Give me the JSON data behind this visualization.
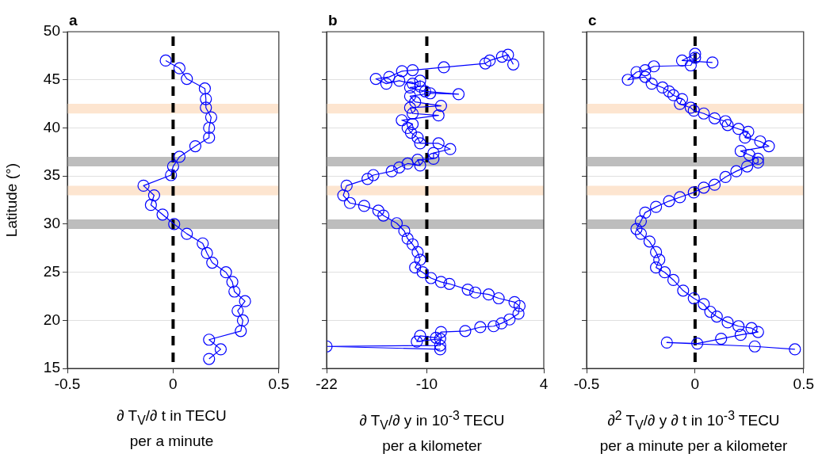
{
  "chart_data": [
    {
      "type": "line",
      "title": "a",
      "xlabel": "∂ T$_{V}$/∂ t in TECU\nper a minute",
      "ylabel": "Latitude (°)",
      "xlim": [
        -0.5,
        0.5
      ],
      "xticks": [
        -0.5,
        0,
        0.5
      ],
      "ylim": [
        15,
        50
      ],
      "yticks": [
        15,
        20,
        25,
        30,
        35,
        40,
        45,
        50
      ],
      "grid": "y",
      "marker": "circle",
      "legend": false,
      "bands": [
        {
          "axis": "y",
          "from": 41.5,
          "to": 42.5,
          "color": "#fde5d0"
        },
        {
          "axis": "y",
          "from": 36,
          "to": 37,
          "color": "#bdbdbd"
        },
        {
          "axis": "y",
          "from": 33,
          "to": 34,
          "color": "#fde5d0"
        },
        {
          "axis": "y",
          "from": 29.5,
          "to": 30.5,
          "color": "#bdbdbd"
        }
      ],
      "ref_lines": [
        {
          "axis": "x",
          "value": 0,
          "color": "#000000",
          "line_style": "dashed"
        }
      ],
      "series": [
        {
          "color": "#0000ff",
          "x": [
            -0.035,
            0.03,
            0.065,
            0.15,
            0.155,
            0.155,
            0.18,
            0.17,
            0.17,
            0.105,
            0.03,
            0.0,
            -0.01,
            -0.14,
            -0.09,
            -0.105,
            -0.05,
            0.005,
            0.065,
            0.14,
            0.16,
            0.185,
            0.25,
            0.28,
            0.29,
            0.34,
            0.305,
            0.33,
            0.32,
            0.17,
            0.225,
            0.17
          ],
          "values": [
            47,
            46.2,
            45.1,
            44.1,
            43,
            42.1,
            41.1,
            40,
            39,
            38.1,
            37,
            36,
            35.1,
            34,
            33,
            32,
            31,
            30,
            29,
            28,
            27,
            26,
            25,
            24,
            23,
            22,
            21,
            20,
            18.9,
            18,
            17,
            16
          ]
        }
      ]
    },
    {
      "type": "line",
      "title": "b",
      "xlabel": "∂ T$_{V}$/∂ y in 10$^{-3}$ TECU\nper a kilometer",
      "xlim": [
        -22,
        4
      ],
      "xticks": [
        -22,
        -10,
        4
      ],
      "ylim": [
        15,
        50
      ],
      "yticks": [
        15,
        20,
        25,
        30,
        35,
        40,
        45,
        50
      ],
      "grid": "y",
      "marker": "circle",
      "legend": false,
      "tick_labels": "x",
      "bands": [
        {
          "axis": "y",
          "from": 41.5,
          "to": 42.5,
          "color": "#fde5d0"
        },
        {
          "axis": "y",
          "from": 36,
          "to": 37,
          "color": "#bdbdbd"
        },
        {
          "axis": "y",
          "from": 33,
          "to": 34,
          "color": "#fde5d0"
        },
        {
          "axis": "y",
          "from": 29.5,
          "to": 30.5,
          "color": "#bdbdbd"
        }
      ],
      "ref_lines": [
        {
          "axis": "x",
          "value": -10,
          "color": "#000000",
          "line_style": "dashed"
        }
      ],
      "series": [
        {
          "color": "#0000ff",
          "x": [
            0.35,
            -0.28,
            -1.0,
            -2.47,
            -3.0,
            -7.96,
            -11.7,
            -12.97,
            -14.5,
            -16.1,
            -14.85,
            -13.3,
            -11.7,
            -10.8,
            -10.8,
            -12.0,
            -10.2,
            -6.2,
            -9.6,
            -12.0,
            -11.4,
            -8.3,
            -12.0,
            -11.7,
            -8.6,
            -13.0,
            -11.7,
            -12.3,
            -11.9,
            -11.1,
            -10.8,
            -8.6,
            -7.2,
            -9.2,
            -9.2,
            -11.1,
            -10.8,
            -12.3,
            -13.3,
            -14.2,
            -16.4,
            -17.1,
            -19.6,
            -20.0,
            -19.2,
            -17.5,
            -15.8,
            -15.2,
            -13.6,
            -12.7,
            -12.3,
            -11.7,
            -11.1,
            -10.8,
            -11.4,
            -10.5,
            -9.5,
            -8.3,
            -7.3,
            -5.1,
            -4.2,
            -2.6,
            -1.4,
            0.5,
            1.1,
            0.97,
            -0.1,
            -1.06,
            -2.0,
            -3.6,
            -5.4,
            -8.3,
            -8.9,
            -10.8,
            -11.2,
            -8.4,
            -8.4,
            -22,
            -8.4
          ],
          "values": [
            46.6,
            47.6,
            47.4,
            47.0,
            46.7,
            46.3,
            46.0,
            45.9,
            45.3,
            45.1,
            44.6,
            44.9,
            44.6,
            44.9,
            44.3,
            44.2,
            43.8,
            43.5,
            43.6,
            43.3,
            42.7,
            42.3,
            42.1,
            41.5,
            41.3,
            40.8,
            40.4,
            40.0,
            39.5,
            39.0,
            38.4,
            38.4,
            37.8,
            37.4,
            36.8,
            36.7,
            36.1,
            36.3,
            35.9,
            35.5,
            35.1,
            34.7,
            34.0,
            33.0,
            32.2,
            31.9,
            31.4,
            30.9,
            30.1,
            29.3,
            28.5,
            27.9,
            27.1,
            26.3,
            25.5,
            25.0,
            24.4,
            24.0,
            23.8,
            23.2,
            22.9,
            22.7,
            22.3,
            21.9,
            21.5,
            20.7,
            20.1,
            19.7,
            19.4,
            19.3,
            18.9,
            18.8,
            18.2,
            18.4,
            17.8,
            18.1,
            17.4,
            17.3,
            17.0
          ]
        }
      ]
    },
    {
      "type": "line",
      "title": "c",
      "xlabel": "∂$^{2}$ T$_{V}$/∂ y ∂ t in 10$^{-3}$ TECU\nper a minute per a kilometer",
      "xlim": [
        -0.5,
        0.5
      ],
      "xticks": [
        -0.5,
        0,
        0.5
      ],
      "ylim": [
        15,
        50
      ],
      "yticks": [
        15,
        20,
        25,
        30,
        35,
        40,
        45,
        50
      ],
      "grid": "y",
      "marker": "circle",
      "legend": false,
      "tick_labels": "x",
      "bands": [
        {
          "axis": "y",
          "from": 41.5,
          "to": 42.5,
          "color": "#fde5d0"
        },
        {
          "axis": "y",
          "from": 36,
          "to": 37,
          "color": "#bdbdbd"
        },
        {
          "axis": "y",
          "from": 33,
          "to": 34,
          "color": "#fde5d0"
        },
        {
          "axis": "y",
          "from": 29.5,
          "to": 30.5,
          "color": "#bdbdbd"
        }
      ],
      "ref_lines": [
        {
          "axis": "x",
          "value": 0,
          "color": "#000000",
          "line_style": "dashed"
        }
      ],
      "series": [
        {
          "color": "#0000ff",
          "x": [
            0.08,
            -0.06,
            0,
            0,
            -0.02,
            -0.19,
            -0.23,
            -0.27,
            -0.31,
            -0.23,
            -0.2,
            -0.15,
            -0.12,
            -0.1,
            -0.06,
            -0.07,
            -0.02,
            -0.006,
            0.04,
            0.09,
            0.14,
            0.15,
            0.2,
            0.245,
            0.23,
            0.3,
            0.34,
            0.21,
            0.25,
            0.29,
            0.29,
            0.24,
            0.19,
            0.14,
            0.09,
            0.04,
            -0.006,
            -0.07,
            -0.12,
            -0.18,
            -0.23,
            -0.25,
            -0.27,
            -0.25,
            -0.21,
            -0.18,
            -0.165,
            -0.18,
            -0.14,
            -0.1,
            -0.055,
            -0.006,
            0.04,
            0.07,
            0.1,
            0.15,
            0.2,
            0.26,
            0.29,
            0.21,
            0.12,
            0.01,
            -0.13,
            0.275,
            0.46
          ],
          "values": [
            46.8,
            47.0,
            47.7,
            47.3,
            46.5,
            46.4,
            46.0,
            45.8,
            45.0,
            45.3,
            44.6,
            44.2,
            43.8,
            43.4,
            43.0,
            42.5,
            42.1,
            41.8,
            41.5,
            41.0,
            40.7,
            40.3,
            39.9,
            39.6,
            39.0,
            38.6,
            38.1,
            37.6,
            37.2,
            36.8,
            36.4,
            36.0,
            35.5,
            34.9,
            34.1,
            33.8,
            33.3,
            32.8,
            32.4,
            31.8,
            31.2,
            30.3,
            29.5,
            29.0,
            28.2,
            27.1,
            26.3,
            25.5,
            25.0,
            24.2,
            23.1,
            22.3,
            21.7,
            20.9,
            20.4,
            19.8,
            19.4,
            19.2,
            18.8,
            18.5,
            18.1,
            17.6,
            17.7,
            17.3,
            17.0
          ]
        }
      ]
    }
  ]
}
